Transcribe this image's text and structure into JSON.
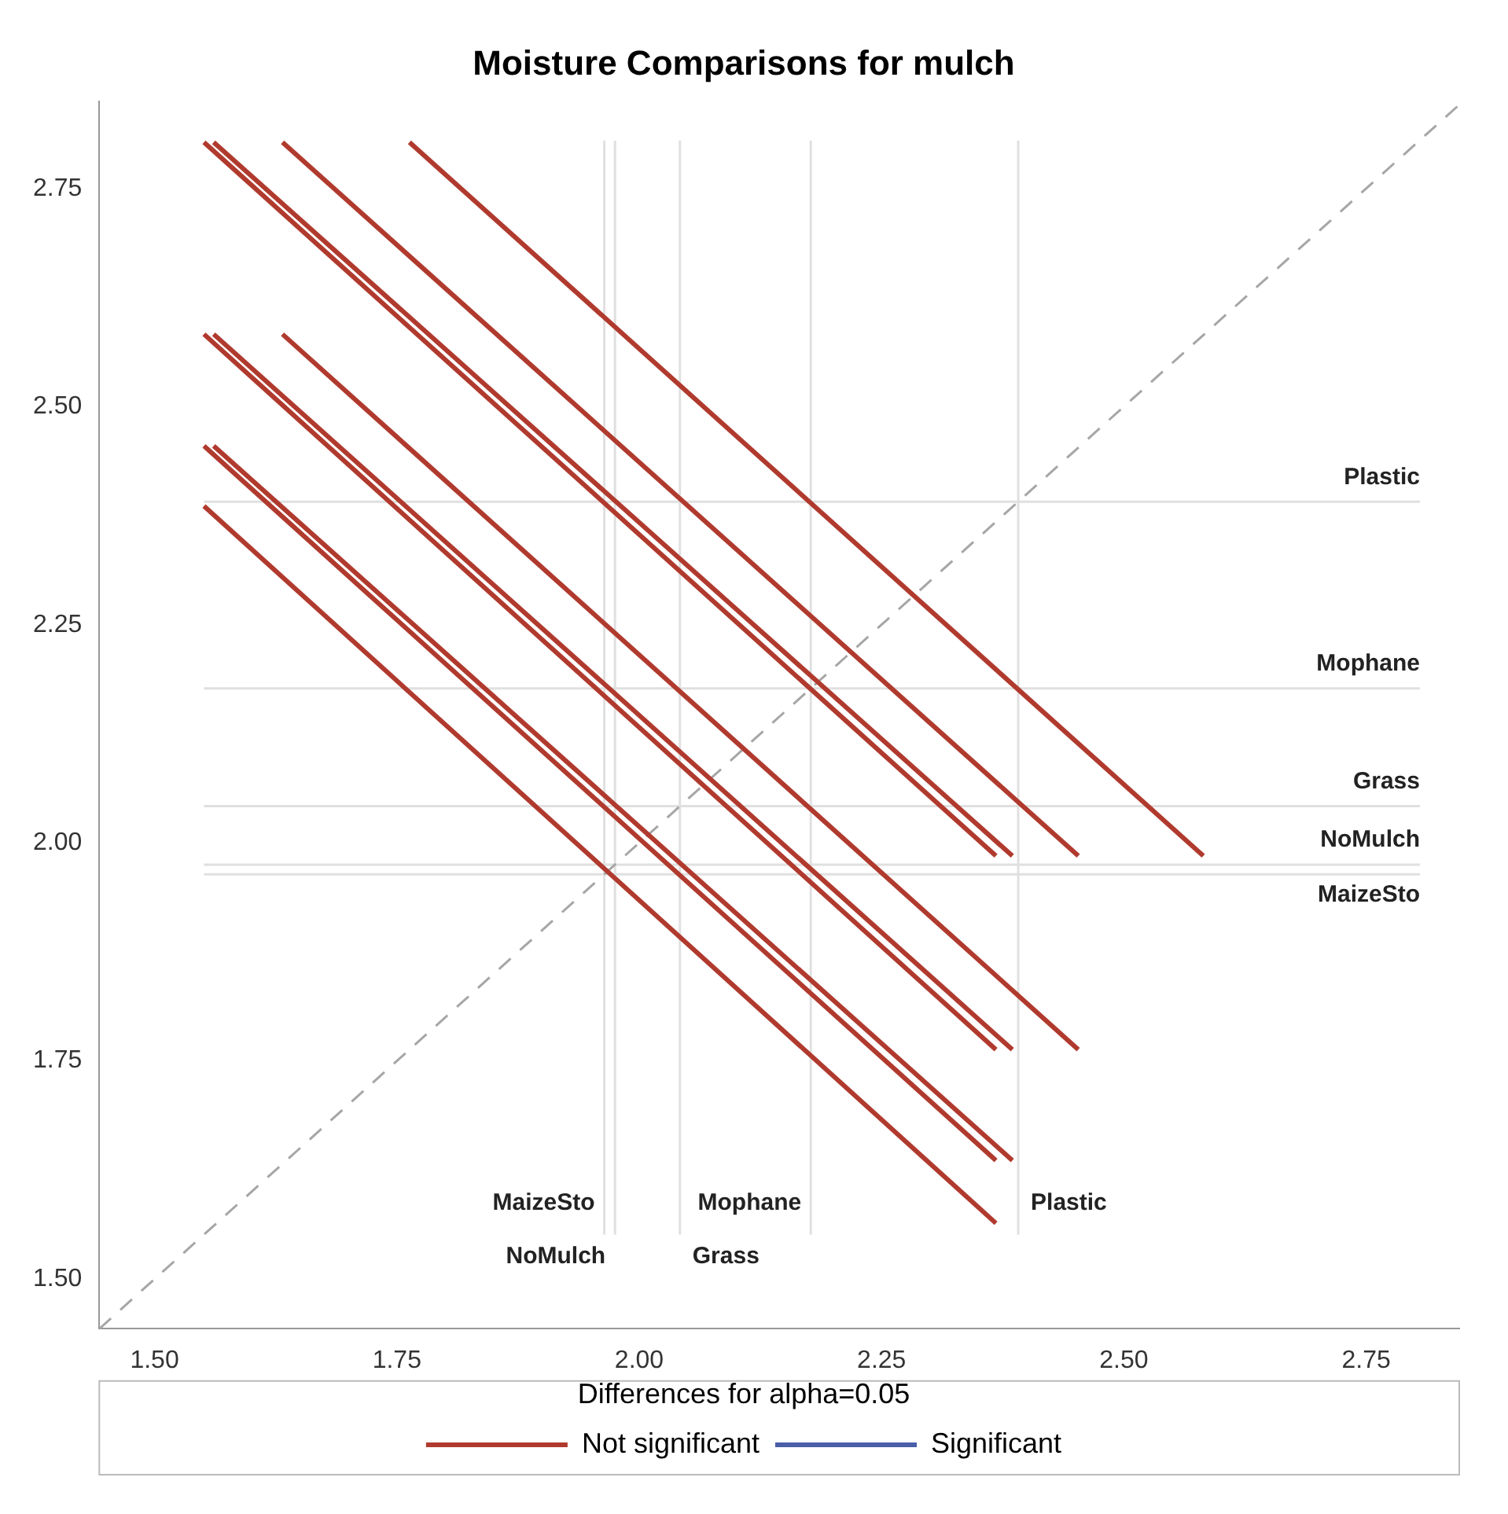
{
  "chart_data": {
    "type": "line",
    "title": "Moisture Comparisons for mulch",
    "legend_title": "Differences for alpha=0.05",
    "legend": "bottom",
    "grid": false,
    "marker": "none",
    "xlim": [
      1.443,
      2.846
    ],
    "ylim": [
      1.443,
      2.85
    ],
    "xticks": [
      {
        "value": 1.5,
        "label": "1.50"
      },
      {
        "value": 1.75,
        "label": "1.75"
      },
      {
        "value": 2,
        "label": "2.00"
      },
      {
        "value": 2.25,
        "label": "2.25"
      },
      {
        "value": 2.5,
        "label": "2.50"
      },
      {
        "value": 2.75,
        "label": "2.75"
      }
    ],
    "yticks": [
      {
        "value": 1.5,
        "label": "1.50"
      },
      {
        "value": 1.75,
        "label": "1.75"
      },
      {
        "value": 2,
        "label": "2.00"
      },
      {
        "value": 2.25,
        "label": "2.25"
      },
      {
        "value": 2.5,
        "label": "2.50"
      },
      {
        "value": 2.75,
        "label": "2.75"
      }
    ],
    "series": [
      {
        "name": "Not significant",
        "color": "#b03a2e",
        "x": [
          1.551,
          2.368
        ],
        "values": [
          2.803,
          1.985
        ]
      },
      {
        "color": "#b03a2e",
        "x": [
          1.561,
          2.385
        ],
        "values": [
          2.803,
          1.985
        ]
      },
      {
        "color": "#b03a2e",
        "x": [
          1.632,
          2.453
        ],
        "values": [
          2.803,
          1.985
        ]
      },
      {
        "color": "#b03a2e",
        "x": [
          1.763,
          2.582
        ],
        "values": [
          2.803,
          1.985
        ]
      },
      {
        "color": "#b03a2e",
        "x": [
          1.551,
          2.368
        ],
        "values": [
          2.583,
          1.763
        ]
      },
      {
        "color": "#b03a2e",
        "x": [
          1.561,
          2.385
        ],
        "values": [
          2.583,
          1.763
        ]
      },
      {
        "color": "#b03a2e",
        "x": [
          1.632,
          2.453
        ],
        "values": [
          2.583,
          1.763
        ]
      },
      {
        "color": "#b03a2e",
        "x": [
          1.551,
          2.368
        ],
        "values": [
          2.455,
          1.636
        ]
      },
      {
        "color": "#b03a2e",
        "x": [
          1.561,
          2.385
        ],
        "values": [
          2.455,
          1.636
        ]
      },
      {
        "color": "#b03a2e",
        "x": [
          1.551,
          2.368
        ],
        "values": [
          2.386,
          1.564
        ]
      },
      {
        "name": "Significant",
        "color": "#4a5ea8"
      },
      {
        "color": "#a6a6a6",
        "line_style": "dashed",
        "x": [
          1.443,
          2.846
        ],
        "values": [
          1.443,
          2.846
        ]
      }
    ],
    "ref_lines": [
      {
        "axis": "x",
        "value": 1.964,
        "label": "MaizeSto",
        "color": "#e0e0e0"
      },
      {
        "axis": "x",
        "value": 1.975,
        "label": "NoMulch",
        "color": "#e0e0e0"
      },
      {
        "axis": "x",
        "value": 2.042,
        "label": "Grass",
        "color": "#e0e0e0"
      },
      {
        "axis": "x",
        "value": 2.177,
        "label": "Mophane",
        "color": "#e0e0e0"
      },
      {
        "axis": "x",
        "value": 2.391,
        "label": "Plastic",
        "color": "#e0e0e0"
      },
      {
        "axis": "y",
        "value": 1.964,
        "label": "MaizeSto",
        "color": "#e0e0e0"
      },
      {
        "axis": "y",
        "value": 1.975,
        "label": "NoMulch",
        "color": "#e0e0e0"
      },
      {
        "axis": "y",
        "value": 2.042,
        "label": "Grass",
        "color": "#e0e0e0"
      },
      {
        "axis": "y",
        "value": 2.177,
        "label": "Mophane",
        "color": "#e0e0e0"
      },
      {
        "axis": "y",
        "value": 2.391,
        "label": "Plastic",
        "color": "#e0e0e0"
      }
    ]
  }
}
